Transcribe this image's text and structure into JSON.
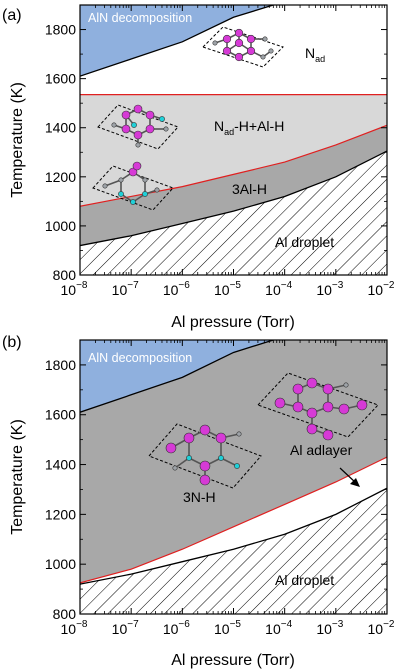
{
  "chart_data": [
    {
      "type": "area",
      "panel_label": "(a)",
      "xlabel": "Al pressure (Torr)",
      "ylabel": "Temperature (K)",
      "x_scale": "log",
      "xlim": [
        1e-08,
        0.01
      ],
      "ylim": [
        800,
        1900
      ],
      "x_ticks": [
        {
          "value": 1e-08,
          "base": "10",
          "exp": "−8"
        },
        {
          "value": 1e-07,
          "base": "10",
          "exp": "−7"
        },
        {
          "value": 1e-06,
          "base": "10",
          "exp": "−6"
        },
        {
          "value": 1e-05,
          "base": "10",
          "exp": "−5"
        },
        {
          "value": 0.0001,
          "base": "10",
          "exp": "−4"
        },
        {
          "value": 0.001,
          "base": "10",
          "exp": "−3"
        },
        {
          "value": 0.01,
          "base": "10",
          "exp": "−2"
        }
      ],
      "y_ticks": [
        "800",
        "1000",
        "1200",
        "1400",
        "1600",
        "1800"
      ],
      "boundaries": {
        "decomposition": {
          "x": [
            1e-08,
            1e-07,
            1e-06,
            1e-05,
            6e-05
          ],
          "y": [
            1610,
            1680,
            1750,
            1850,
            1900
          ]
        },
        "nad_upper": {
          "x": [
            1e-08,
            0.01
          ],
          "y": [
            1535,
            1535
          ]
        },
        "red_boundary": {
          "x": [
            1e-08,
            1e-07,
            1e-06,
            1e-05,
            0.0001,
            0.001,
            0.01
          ],
          "y": [
            1080,
            1120,
            1160,
            1210,
            1260,
            1330,
            1410
          ]
        },
        "droplet": {
          "x": [
            1e-08,
            1e-07,
            1e-06,
            1e-05,
            0.0001,
            0.001,
            0.01
          ],
          "y": [
            920,
            960,
            1010,
            1060,
            1120,
            1200,
            1305
          ]
        }
      },
      "region_labels": {
        "decomposition": "AlN decomposition",
        "nad": {
          "main": "N",
          "sub": "ad"
        },
        "nad_h": {
          "main": "N",
          "sub": "ad",
          "rest": "-H+Al-H"
        },
        "al_h": "3Al-H",
        "droplet": "Al droplet"
      },
      "colors": {
        "decomposition": "#8fb0de",
        "nad_h": "#d8d8d8",
        "al_h": "#a8a8a8",
        "red_line": "#e02020",
        "n_atom": "#d63ad6",
        "h_atom": "#20d0d8"
      }
    },
    {
      "type": "area",
      "panel_label": "(b)",
      "xlabel": "Al pressure (Torr)",
      "ylabel": "Temperature (K)",
      "x_scale": "log",
      "xlim": [
        1e-08,
        0.01
      ],
      "ylim": [
        800,
        1900
      ],
      "x_ticks": [
        {
          "value": 1e-08,
          "base": "10",
          "exp": "−8"
        },
        {
          "value": 1e-07,
          "base": "10",
          "exp": "−7"
        },
        {
          "value": 1e-06,
          "base": "10",
          "exp": "−6"
        },
        {
          "value": 1e-05,
          "base": "10",
          "exp": "−5"
        },
        {
          "value": 0.0001,
          "base": "10",
          "exp": "−4"
        },
        {
          "value": 0.001,
          "base": "10",
          "exp": "−3"
        },
        {
          "value": 0.01,
          "base": "10",
          "exp": "−2"
        }
      ],
      "y_ticks": [
        "800",
        "1000",
        "1200",
        "1400",
        "1600",
        "1800"
      ],
      "boundaries": {
        "decomposition": {
          "x": [
            1e-08,
            1e-07,
            1e-06,
            1e-05,
            6e-05
          ],
          "y": [
            1610,
            1680,
            1750,
            1850,
            1900
          ]
        },
        "red_boundary": {
          "x": [
            1e-08,
            1e-07,
            1e-06,
            1e-05,
            0.0001,
            0.001,
            0.01
          ],
          "y": [
            925,
            980,
            1060,
            1150,
            1240,
            1330,
            1430
          ]
        },
        "droplet": {
          "x": [
            1e-08,
            1e-07,
            1e-06,
            1e-05,
            0.0001,
            0.001,
            0.01
          ],
          "y": [
            920,
            960,
            1010,
            1060,
            1120,
            1200,
            1305
          ]
        }
      },
      "region_labels": {
        "decomposition": "AlN decomposition",
        "n_h": "3N-H",
        "adlayer": "Al adlayer",
        "droplet": "Al droplet"
      },
      "colors": {
        "decomposition": "#8fb0de",
        "n_h": "#a8a8a8",
        "red_line": "#e02020",
        "n_atom": "#d63ad6",
        "h_atom": "#20d0d8"
      }
    }
  ]
}
